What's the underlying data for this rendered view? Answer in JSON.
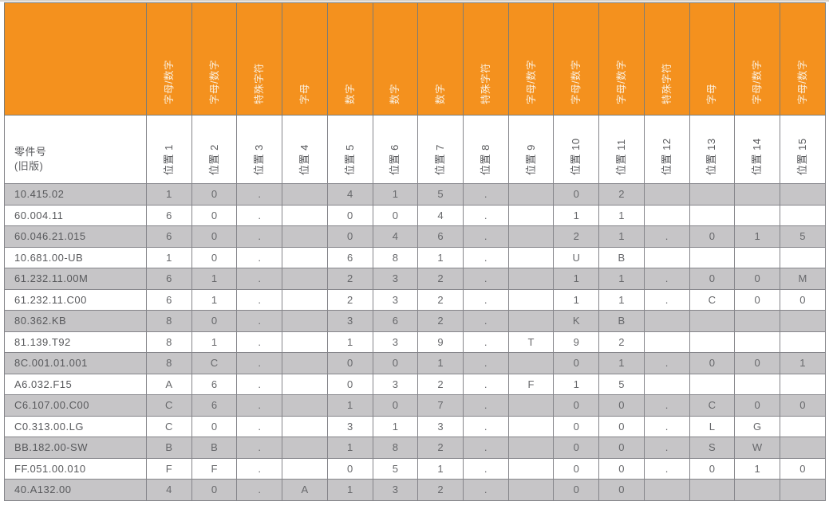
{
  "colors": {
    "header_orange": "#F4911E",
    "header_vertical_text": "#FAEEDC",
    "row_alternate_gray": "#C6C5C7",
    "row_white": "#FFFFFF",
    "cell_text": "#67686B",
    "part_number_text": "#58595C",
    "grid_border": "#85858A"
  },
  "table": {
    "part_header": {
      "line1": "零件号",
      "line2": "(旧版)"
    },
    "columns": [
      {
        "label": "位置 1",
        "type": "字母/数字"
      },
      {
        "label": "位置 2",
        "type": "字母/数字"
      },
      {
        "label": "位置 3",
        "type": "特殊字符"
      },
      {
        "label": "位置 4",
        "type": "字母"
      },
      {
        "label": "位置 5",
        "type": "数字"
      },
      {
        "label": "位置 6",
        "type": "数字"
      },
      {
        "label": "位置 7",
        "type": "数字"
      },
      {
        "label": "位置 8",
        "type": "特殊字符"
      },
      {
        "label": "位置 9",
        "type": "字母/数字"
      },
      {
        "label": "位置 10",
        "type": "字母/数字"
      },
      {
        "label": "位置 11",
        "type": "字母/数字"
      },
      {
        "label": "位置 12",
        "type": "特殊字符"
      },
      {
        "label": "位置 13",
        "type": "字母"
      },
      {
        "label": "位置 14",
        "type": "字母/数字"
      },
      {
        "label": "位置 15",
        "type": "字母/数字"
      }
    ],
    "rows": [
      {
        "part": "10.415.02",
        "cells": [
          "1",
          "0",
          ".",
          "",
          "4",
          "1",
          "5",
          ".",
          "",
          "0",
          "2",
          "",
          "",
          "",
          ""
        ]
      },
      {
        "part": "60.004.11",
        "cells": [
          "6",
          "0",
          ".",
          "",
          "0",
          "0",
          "4",
          ".",
          "",
          "1",
          "1",
          "",
          "",
          "",
          ""
        ]
      },
      {
        "part": "60.046.21.015",
        "cells": [
          "6",
          "0",
          ".",
          "",
          "0",
          "4",
          "6",
          ".",
          "",
          "2",
          "1",
          ".",
          "0",
          "1",
          "5"
        ]
      },
      {
        "part": "10.681.00-UB",
        "cells": [
          "1",
          "0",
          ".",
          "",
          "6",
          "8",
          "1",
          ".",
          "",
          "U",
          "B",
          "",
          "",
          "",
          ""
        ]
      },
      {
        "part": "61.232.11.00M",
        "cells": [
          "6",
          "1",
          ".",
          "",
          "2",
          "3",
          "2",
          ".",
          "",
          "1",
          "1",
          ".",
          "0",
          "0",
          "M"
        ]
      },
      {
        "part": "61.232.11.C00",
        "cells": [
          "6",
          "1",
          ".",
          "",
          "2",
          "3",
          "2",
          ".",
          "",
          "1",
          "1",
          ".",
          "C",
          "0",
          "0"
        ]
      },
      {
        "part": "80.362.KB",
        "cells": [
          "8",
          "0",
          ".",
          "",
          "3",
          "6",
          "2",
          ".",
          "",
          "K",
          "B",
          "",
          "",
          "",
          ""
        ]
      },
      {
        "part": "81.139.T92",
        "cells": [
          "8",
          "1",
          ".",
          "",
          "1",
          "3",
          "9",
          ".",
          "T",
          "9",
          "2",
          "",
          "",
          "",
          ""
        ]
      },
      {
        "part": "8C.001.01.001",
        "cells": [
          "8",
          "C",
          ".",
          "",
          "0",
          "0",
          "1",
          ".",
          "",
          "0",
          "1",
          ".",
          "0",
          "0",
          "1"
        ]
      },
      {
        "part": "A6.032.F15",
        "cells": [
          "A",
          "6",
          ".",
          "",
          "0",
          "3",
          "2",
          ".",
          "F",
          "1",
          "5",
          "",
          "",
          "",
          ""
        ]
      },
      {
        "part": "C6.107.00.C00",
        "cells": [
          "C",
          "6",
          ".",
          "",
          "1",
          "0",
          "7",
          ".",
          "",
          "0",
          "0",
          ".",
          "C",
          "0",
          "0"
        ]
      },
      {
        "part": "C0.313.00.LG",
        "cells": [
          "C",
          "0",
          ".",
          "",
          "3",
          "1",
          "3",
          ".",
          "",
          "0",
          "0",
          ".",
          "L",
          "G",
          ""
        ]
      },
      {
        "part": "BB.182.00-SW",
        "cells": [
          "B",
          "B",
          ".",
          "",
          "1",
          "8",
          "2",
          ".",
          "",
          "0",
          "0",
          ".",
          "S",
          "W",
          ""
        ]
      },
      {
        "part": "FF.051.00.010",
        "cells": [
          "F",
          "F",
          ".",
          "",
          "0",
          "5",
          "1",
          ".",
          "",
          "0",
          "0",
          ".",
          "0",
          "1",
          "0"
        ]
      },
      {
        "part": "40.A132.00",
        "cells": [
          "4",
          "0",
          ".",
          "A",
          "1",
          "3",
          "2",
          ".",
          "",
          "0",
          "0",
          "",
          "",
          "",
          ""
        ]
      }
    ]
  }
}
